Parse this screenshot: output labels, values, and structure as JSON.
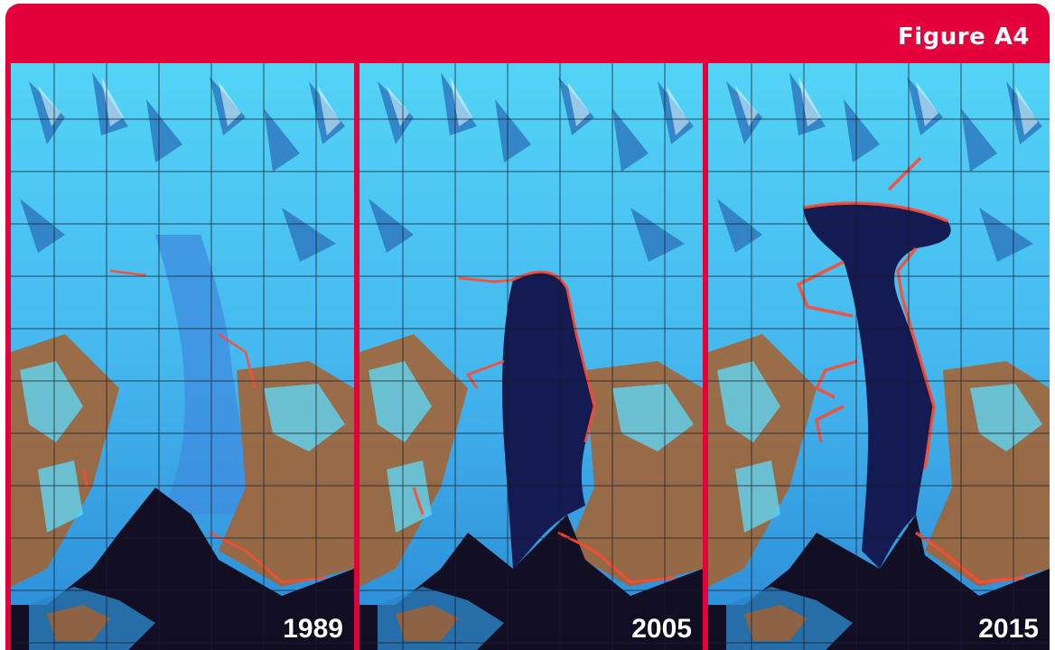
{
  "figure_label": "Figure A4",
  "panels": [
    {
      "year": "1989",
      "lake_extent": 0.0
    },
    {
      "year": "2005",
      "lake_extent": 0.55
    },
    {
      "year": "2015",
      "lake_extent": 1.0
    }
  ],
  "colors": {
    "frame": "#e4003b",
    "ice": "#4fd3f5",
    "ice_dark": "#1f7fc7",
    "rock": "#a8602b",
    "water": "#120f24",
    "lake": "#141a52",
    "fringe": "#ff4a32",
    "grid": "#1b1b2a"
  }
}
